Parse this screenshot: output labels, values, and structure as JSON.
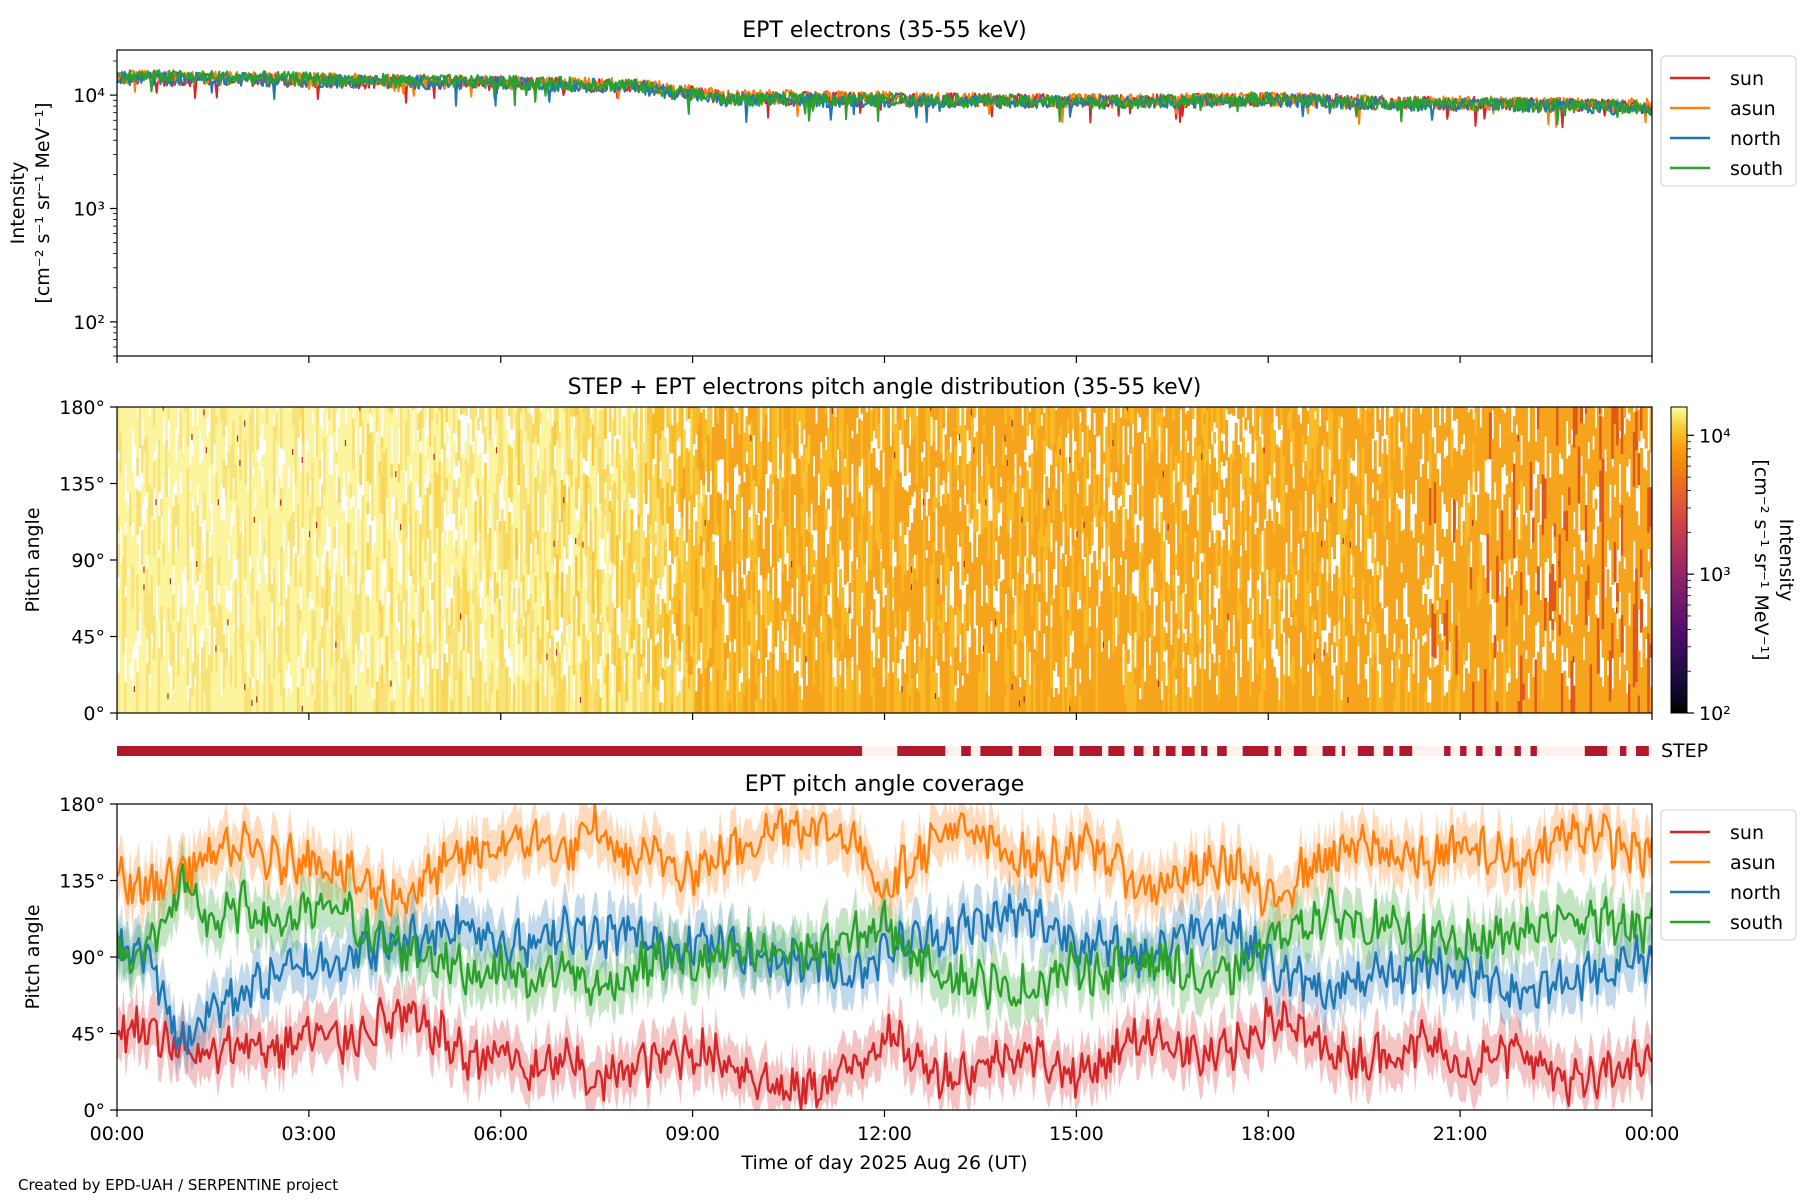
{
  "footer": "Created by EPD-UAH / SERPENTINE project",
  "xlabel": "Time of day 2025 Aug 26 (UT)",
  "x_ticks": [
    "00:00",
    "03:00",
    "06:00",
    "09:00",
    "12:00",
    "15:00",
    "18:00",
    "21:00",
    "00:00"
  ],
  "legend": [
    {
      "name": "sun",
      "color": "#d62728"
    },
    {
      "name": "asun",
      "color": "#ff7f0e"
    },
    {
      "name": "north",
      "color": "#1f77b4"
    },
    {
      "name": "south",
      "color": "#2ca02c"
    }
  ],
  "chart_data": [
    {
      "type": "line",
      "title": "EPT electrons (35-55 keV)",
      "ylabel_line1": "Intensity",
      "ylabel_line2": "[cm⁻² s⁻¹ sr⁻¹ MeV⁻¹]",
      "yscale": "log",
      "ylim": [
        50,
        25000
      ],
      "y_ticks": [
        {
          "value": 100,
          "label": "10²"
        },
        {
          "value": 1000,
          "label": "10³"
        },
        {
          "value": 10000,
          "label": "10⁴"
        }
      ],
      "x_unit": "hours",
      "xlim": [
        0,
        24
      ],
      "legend_position": "outside-right",
      "series": [
        {
          "name": "sun",
          "color": "#d62728",
          "x": [
            0,
            2,
            4,
            6,
            8,
            9.5,
            12,
            14,
            16,
            18,
            20,
            22,
            24
          ],
          "values": [
            14000,
            13800,
            13200,
            12800,
            12300,
            9600,
            9300,
            9000,
            8900,
            9300,
            8600,
            8400,
            7900
          ]
        },
        {
          "name": "asun",
          "color": "#ff7f0e",
          "x": [
            0,
            2,
            4,
            6,
            8,
            9.5,
            12,
            14,
            16,
            18,
            20,
            22,
            24
          ],
          "values": [
            14500,
            14200,
            13500,
            13000,
            12500,
            9900,
            9500,
            9100,
            9000,
            9400,
            8700,
            8500,
            8200
          ]
        },
        {
          "name": "north",
          "color": "#1f77b4",
          "x": [
            0,
            2,
            4,
            6,
            8,
            9.5,
            12,
            14,
            16,
            18,
            20,
            22,
            24
          ],
          "values": [
            14200,
            13900,
            13300,
            12700,
            12100,
            9000,
            9100,
            8800,
            8700,
            9200,
            8400,
            8200,
            7600
          ]
        },
        {
          "name": "south",
          "color": "#2ca02c",
          "x": [
            0,
            2,
            4,
            6,
            8,
            9.5,
            12,
            14,
            16,
            18,
            20,
            22,
            24
          ],
          "values": [
            14800,
            14400,
            13600,
            13100,
            12400,
            9300,
            9200,
            8900,
            8800,
            9300,
            8500,
            8300,
            7800
          ]
        }
      ]
    },
    {
      "type": "heatmap",
      "title": "STEP + EPT electrons pitch angle distribution (35-55 keV)",
      "ylabel": "Pitch angle",
      "ylim": [
        0,
        180
      ],
      "y_ticks": [
        "0°",
        "45°",
        "90°",
        "135°",
        "180°"
      ],
      "x_unit": "hours",
      "xlim": [
        0,
        24
      ],
      "colorbar": {
        "label_line1": "Intensity",
        "label_line2": "[cm⁻² s⁻¹ sr⁻¹ MeV⁻¹]",
        "scale": "log",
        "range": [
          100,
          16000
        ],
        "ticks": [
          {
            "value": 100,
            "label": "10²"
          },
          {
            "value": 1000,
            "label": "10³"
          },
          {
            "value": 10000,
            "label": "10⁴"
          }
        ],
        "colormap": "inferno"
      },
      "intensity_profile": {
        "x": [
          0,
          3,
          6,
          8,
          9.5,
          12,
          15,
          18,
          21,
          24
        ],
        "values": [
          15000,
          14500,
          13500,
          12800,
          9500,
          9300,
          9000,
          9200,
          8600,
          8200
        ]
      }
    },
    {
      "type": "bar",
      "label": "STEP",
      "color": "#b2182b",
      "x_unit": "hours",
      "availability_intervals": [
        [
          0,
          11.65
        ],
        [
          12.2,
          12.95
        ],
        [
          13.2,
          13.35
        ],
        [
          13.5,
          14.0
        ],
        [
          14.1,
          14.45
        ],
        [
          14.65,
          14.95
        ],
        [
          15.05,
          15.4
        ],
        [
          15.5,
          15.75
        ],
        [
          15.9,
          16.05
        ],
        [
          16.2,
          16.3
        ],
        [
          16.4,
          16.55
        ],
        [
          16.65,
          16.85
        ],
        [
          16.95,
          17.05
        ],
        [
          17.2,
          17.35
        ],
        [
          17.6,
          18.0
        ],
        [
          18.1,
          18.2
        ],
        [
          18.4,
          18.6
        ],
        [
          18.85,
          19.05
        ],
        [
          19.15,
          19.2
        ],
        [
          19.4,
          19.65
        ],
        [
          19.8,
          19.95
        ],
        [
          20.05,
          20.25
        ],
        [
          20.75,
          20.85
        ],
        [
          21.0,
          21.1
        ],
        [
          21.25,
          21.35
        ],
        [
          21.55,
          21.65
        ],
        [
          21.85,
          21.95
        ],
        [
          22.1,
          22.2
        ],
        [
          22.95,
          23.3
        ],
        [
          23.5,
          23.6
        ],
        [
          23.75,
          23.95
        ]
      ]
    },
    {
      "type": "line",
      "title": "EPT pitch angle coverage",
      "ylabel": "Pitch angle",
      "ylim": [
        0,
        180
      ],
      "y_ticks": [
        "0°",
        "45°",
        "90°",
        "135°",
        "180°"
      ],
      "x_unit": "hours",
      "xlim": [
        0,
        24
      ],
      "legend_position": "outside-right",
      "band_halfwidth_deg": 15,
      "series": [
        {
          "name": "sun",
          "color": "#d62728",
          "x": [
            0,
            0.5,
            1,
            1.5,
            2,
            2.5,
            3,
            3.5,
            4,
            4.5,
            5,
            5.5,
            6,
            6.5,
            7,
            7.5,
            8,
            8.5,
            9,
            9.5,
            10,
            10.5,
            11,
            11.5,
            12,
            12.5,
            13,
            13.5,
            14,
            14.5,
            15,
            15.5,
            16,
            16.5,
            17,
            17.5,
            18,
            18.5,
            19,
            19.5,
            20,
            20.5,
            21,
            21.5,
            22,
            22.5,
            23,
            23.5,
            24
          ],
          "values": [
            45,
            50,
            35,
            30,
            40,
            35,
            45,
            40,
            50,
            55,
            45,
            30,
            35,
            20,
            30,
            15,
            25,
            30,
            35,
            30,
            20,
            10,
            15,
            25,
            45,
            30,
            20,
            25,
            35,
            30,
            20,
            30,
            45,
            40,
            30,
            35,
            55,
            45,
            35,
            30,
            35,
            40,
            25,
            30,
            35,
            20,
            15,
            25,
            30
          ]
        },
        {
          "name": "asun",
          "color": "#ff7f0e",
          "x": [
            0,
            0.5,
            1,
            1.5,
            2,
            2.5,
            3,
            3.5,
            4,
            4.5,
            5,
            5.5,
            6,
            6.5,
            7,
            7.5,
            8,
            8.5,
            9,
            9.5,
            10,
            10.5,
            11,
            11.5,
            12,
            12.5,
            13,
            13.5,
            14,
            14.5,
            15,
            15.5,
            16,
            16.5,
            17,
            17.5,
            18,
            18.5,
            19,
            19.5,
            20,
            20.5,
            21,
            21.5,
            22,
            22.5,
            23,
            23.5,
            24
          ],
          "values": [
            135,
            130,
            140,
            150,
            155,
            145,
            150,
            140,
            130,
            125,
            140,
            150,
            155,
            160,
            150,
            165,
            145,
            150,
            140,
            150,
            160,
            170,
            165,
            160,
            130,
            150,
            165,
            160,
            150,
            145,
            155,
            150,
            130,
            135,
            140,
            145,
            120,
            140,
            150,
            155,
            150,
            145,
            155,
            150,
            145,
            160,
            165,
            155,
            150
          ]
        },
        {
          "name": "north",
          "color": "#1f77b4",
          "x": [
            0,
            0.5,
            1,
            1.5,
            2,
            2.5,
            3,
            3.5,
            4,
            4.5,
            5,
            5.5,
            6,
            6.5,
            7,
            7.5,
            8,
            8.5,
            9,
            9.5,
            10,
            10.5,
            11,
            11.5,
            12,
            12.5,
            13,
            13.5,
            14,
            14.5,
            15,
            15.5,
            16,
            16.5,
            17,
            17.5,
            18,
            18.5,
            19,
            19.5,
            20,
            20.5,
            21,
            21.5,
            22,
            22.5,
            23,
            23.5,
            24
          ],
          "values": [
            95,
            90,
            40,
            60,
            70,
            80,
            85,
            90,
            95,
            100,
            105,
            110,
            100,
            95,
            110,
            100,
            105,
            95,
            100,
            95,
            90,
            88,
            85,
            80,
            95,
            100,
            105,
            110,
            115,
            110,
            100,
            95,
            90,
            100,
            110,
            105,
            85,
            75,
            70,
            75,
            80,
            85,
            80,
            75,
            70,
            75,
            80,
            85,
            90
          ]
        },
        {
          "name": "south",
          "color": "#2ca02c",
          "x": [
            0,
            0.5,
            1,
            1.5,
            2,
            2.5,
            3,
            3.5,
            4,
            4.5,
            5,
            5.5,
            6,
            6.5,
            7,
            7.5,
            8,
            8.5,
            9,
            9.5,
            10,
            10.5,
            11,
            11.5,
            12,
            12.5,
            13,
            13.5,
            14,
            14.5,
            15,
            15.5,
            16,
            16.5,
            17,
            17.5,
            18,
            18.5,
            19,
            19.5,
            20,
            20.5,
            21,
            21.5,
            22,
            22.5,
            23,
            23.5,
            24
          ],
          "values": [
            90,
            95,
            130,
            110,
            120,
            110,
            115,
            120,
            100,
            95,
            90,
            80,
            85,
            75,
            85,
            70,
            80,
            90,
            85,
            90,
            92,
            93,
            95,
            100,
            110,
            90,
            80,
            75,
            70,
            75,
            85,
            80,
            90,
            85,
            75,
            80,
            100,
            110,
            115,
            110,
            105,
            100,
            95,
            100,
            105,
            110,
            115,
            110,
            105
          ]
        }
      ]
    }
  ]
}
